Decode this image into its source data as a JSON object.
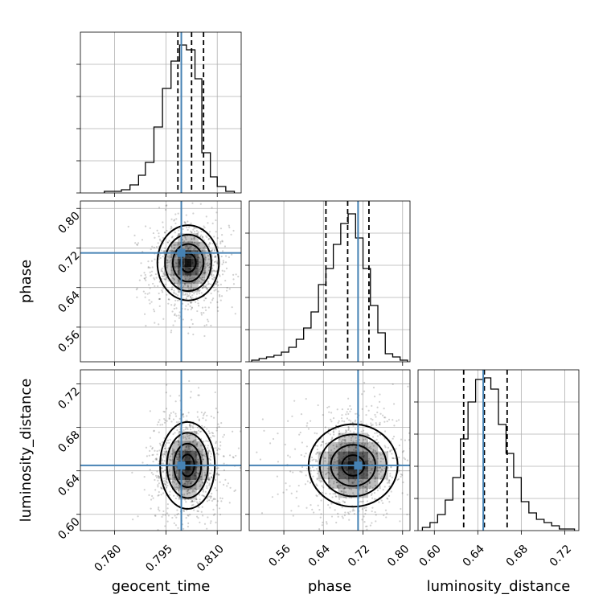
{
  "chart_data": {
    "type": "corner",
    "parameters": [
      "geocent_time",
      "phase",
      "luminosity_distance"
    ],
    "ranges": [
      [
        0.77,
        0.817
      ],
      [
        0.49,
        0.815
      ],
      [
        0.585,
        0.733
      ]
    ],
    "ticks": [
      [
        "0.780",
        "0.795",
        "0.810"
      ],
      [
        "0.56",
        "0.64",
        "0.72",
        "0.80"
      ],
      [
        "0.60",
        "0.64",
        "0.68",
        "0.72"
      ]
    ],
    "truths": [
      0.7995,
      0.71,
      0.645
    ],
    "truth_color": "#4682b4",
    "quantiles": {
      "geocent_time": [
        0.7985,
        0.8025,
        0.806
      ],
      "phase": [
        0.645,
        0.689,
        0.732
      ],
      "luminosity_distance": [
        0.627,
        0.646,
        0.667
      ]
    },
    "histograms": {
      "geocent_time": {
        "edges": [
          0.777,
          0.7795,
          0.782,
          0.7845,
          0.787,
          0.789,
          0.7915,
          0.794,
          0.7965,
          0.799,
          0.801,
          0.8035,
          0.8055,
          0.808,
          0.81,
          0.8125,
          0.815
        ],
        "counts": [
          0.01,
          0.01,
          0.02,
          0.05,
          0.11,
          0.19,
          0.41,
          0.65,
          0.82,
          0.92,
          0.89,
          0.71,
          0.25,
          0.1,
          0.04,
          0.01
        ]
      },
      "phase": {
        "edges": [
          0.495,
          0.51,
          0.525,
          0.54,
          0.555,
          0.57,
          0.585,
          0.6,
          0.615,
          0.63,
          0.645,
          0.66,
          0.675,
          0.69,
          0.705,
          0.72,
          0.735,
          0.75,
          0.765,
          0.78,
          0.795,
          0.81
        ],
        "counts": [
          0.01,
          0.02,
          0.03,
          0.04,
          0.06,
          0.09,
          0.14,
          0.21,
          0.31,
          0.48,
          0.58,
          0.73,
          0.86,
          0.92,
          0.77,
          0.58,
          0.35,
          0.18,
          0.05,
          0.03,
          0.01
        ]
      },
      "luminosity_distance": {
        "edges": [
          0.589,
          0.596,
          0.603,
          0.61,
          0.617,
          0.624,
          0.631,
          0.638,
          0.645,
          0.652,
          0.659,
          0.666,
          0.673,
          0.68,
          0.687,
          0.694,
          0.701,
          0.708,
          0.715,
          0.722,
          0.729
        ],
        "counts": [
          0.02,
          0.05,
          0.1,
          0.19,
          0.33,
          0.57,
          0.8,
          0.94,
          0.95,
          0.88,
          0.66,
          0.48,
          0.33,
          0.18,
          0.11,
          0.07,
          0.05,
          0.03,
          0.01,
          0.01
        ]
      }
    },
    "density_contours": [
      {
        "x": "geocent_time",
        "y": "phase",
        "center": [
          0.8015,
          0.69
        ],
        "sigma": [
          0.0045,
          0.038
        ]
      },
      {
        "x": "geocent_time",
        "y": "luminosity_distance",
        "center": [
          0.8013,
          0.645
        ],
        "sigma": [
          0.004,
          0.02
        ]
      },
      {
        "x": "phase",
        "y": "luminosity_distance",
        "center": [
          0.7,
          0.645
        ],
        "sigma": [
          0.045,
          0.019
        ]
      }
    ],
    "grid": true
  }
}
